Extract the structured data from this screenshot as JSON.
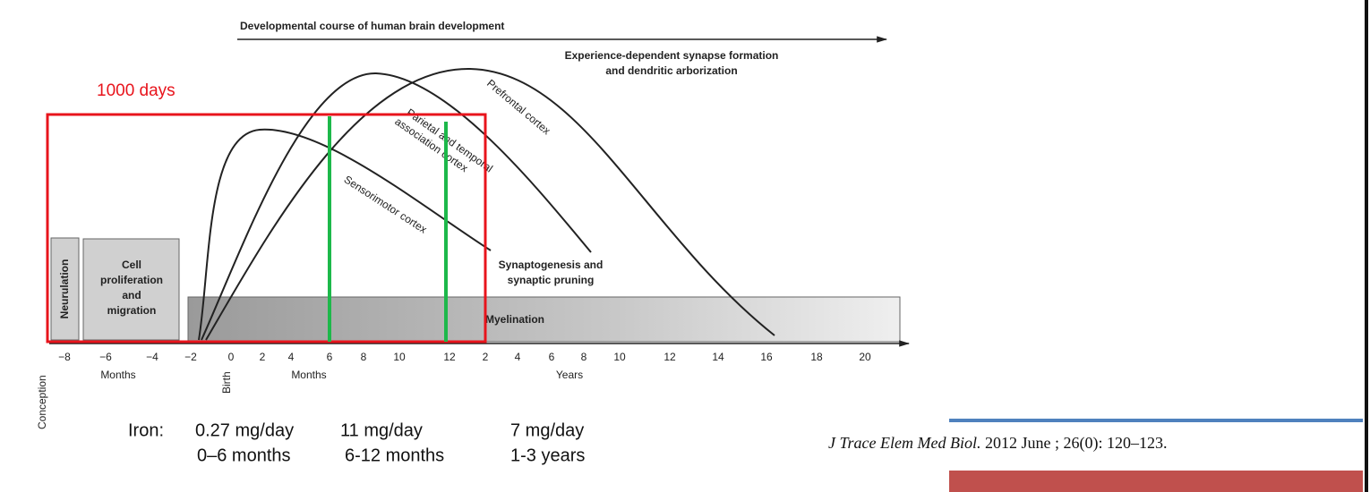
{
  "figure": {
    "title": "Developmental course of human brain development",
    "highlight": "1000 days",
    "top_label": [
      "Experience-dependent synapse formation",
      "and dendritic arborization"
    ],
    "boxes": [
      "Neurulation",
      "Cell",
      "proliferation",
      "and",
      "migration"
    ],
    "curves": [
      "Sensorimotor cortex",
      "Parietal and temporal",
      "association cortex",
      "Prefrontal cortex"
    ],
    "synapse_label": [
      "Synaptogenesis and",
      "synaptic pruning"
    ],
    "myelination": "Myelination",
    "ticks": [
      "−8",
      "−6",
      "−4",
      "−2",
      "0",
      "2",
      "4",
      "6",
      "8",
      "10",
      "12",
      "2",
      "4",
      "6",
      "8",
      "10",
      "12",
      "14",
      "16",
      "18",
      "20"
    ],
    "unit_labels": [
      "Months",
      "Months",
      "Years"
    ],
    "markers": [
      "Conception",
      "Birth"
    ]
  },
  "iron": {
    "label": "Iron:",
    "doses": [
      "0.27 mg/day",
      "11 mg/day",
      "7 mg/day"
    ],
    "ages": [
      "0–6 months",
      "6-12 months",
      "1-3 years"
    ]
  },
  "citation": {
    "journal": "J Trace Elem Med Biol.",
    "details": "2012 June ; 26(0): 120–123."
  }
}
